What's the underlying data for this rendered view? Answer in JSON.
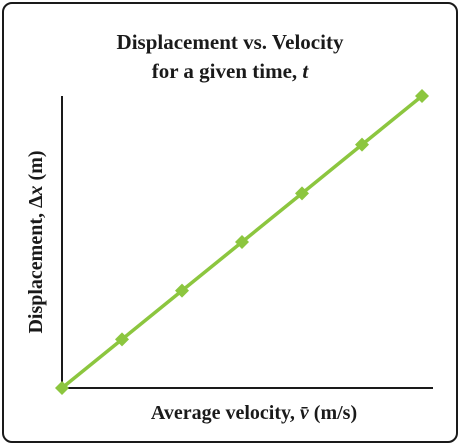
{
  "chart_data": {
    "type": "line",
    "title_line1": "Displacement vs. Velocity",
    "title_line2_prefix": "for a given time, ",
    "title_line2_var": "t",
    "xlabel_prefix": "Average velocity, ",
    "xlabel_var": "v̄",
    "xlabel_unit": " (m/s)",
    "ylabel_prefix": "Displacement, Δ",
    "ylabel_var": "x",
    "ylabel_unit": " (m)",
    "grid": false,
    "legend": "none",
    "x": [
      0,
      1,
      2,
      3,
      4,
      5,
      6
    ],
    "y": [
      0,
      1,
      2,
      3,
      4,
      5,
      6
    ],
    "xlim": [
      0,
      6.3
    ],
    "ylim": [
      0,
      6.0
    ],
    "series": [
      {
        "values": [
          0,
          1,
          2,
          3,
          4,
          5,
          6
        ],
        "color": "#8cc63f",
        "marker": "diamond"
      }
    ]
  }
}
